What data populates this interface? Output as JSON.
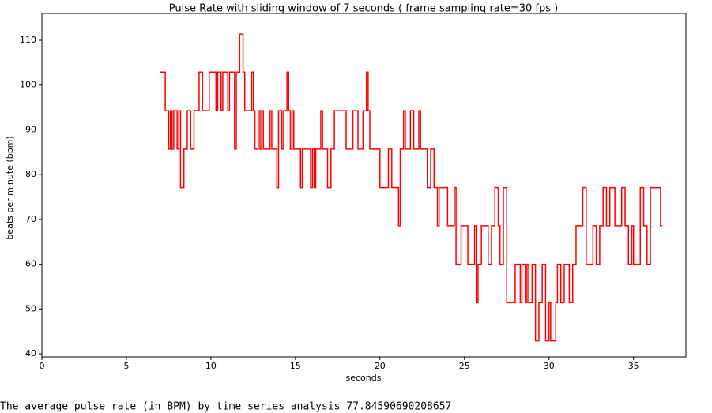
{
  "chart_data": {
    "type": "line",
    "title": "Pulse Rate with sliding window of 7 seconds  ( frame sampling rate=30 fps )",
    "xlabel": "seconds",
    "ylabel": "beats per minute (bpm)",
    "color": "#ff0000",
    "xlim": [
      0,
      38.1
    ],
    "ylim": [
      39.3,
      116
    ],
    "xticks": [
      0,
      5,
      10,
      15,
      20,
      25,
      30,
      35
    ],
    "yticks": [
      40,
      50,
      60,
      70,
      80,
      90,
      100,
      110
    ],
    "grid": false,
    "x": [
      7.0,
      7.3,
      7.3,
      7.5,
      7.5,
      7.6,
      7.6,
      7.7,
      7.7,
      7.8,
      7.8,
      8.0,
      8.0,
      8.1,
      8.1,
      8.2,
      8.2,
      8.4,
      8.4,
      8.6,
      8.6,
      8.8,
      8.8,
      9.0,
      9.0,
      9.3,
      9.3,
      9.5,
      9.5,
      9.9,
      9.9,
      10.3,
      10.3,
      10.4,
      10.4,
      10.6,
      10.6,
      10.7,
      10.7,
      11.0,
      11.0,
      11.1,
      11.1,
      11.4,
      11.4,
      11.5,
      11.5,
      11.7,
      11.7,
      11.9,
      11.9,
      12.0,
      12.0,
      12.4,
      12.4,
      12.5,
      12.5,
      12.6,
      12.6,
      12.8,
      12.8,
      12.9,
      12.9,
      13.0,
      13.0,
      13.1,
      13.1,
      13.5,
      13.5,
      13.6,
      13.6,
      13.9,
      13.9,
      14.0,
      14.0,
      14.2,
      14.2,
      14.3,
      14.3,
      14.5,
      14.5,
      14.6,
      14.6,
      14.7,
      14.7,
      14.8,
      14.8,
      14.9,
      14.9,
      15.3,
      15.3,
      15.4,
      15.4,
      15.9,
      15.9,
      16.0,
      16.0,
      16.1,
      16.1,
      16.2,
      16.2,
      16.5,
      16.5,
      16.6,
      16.6,
      16.9,
      16.9,
      17.1,
      17.1,
      17.3,
      17.3,
      18.0,
      18.0,
      18.4,
      18.4,
      18.7,
      18.7,
      19.0,
      19.0,
      19.2,
      19.2,
      19.3,
      19.3,
      19.4,
      19.4,
      20.0,
      20.0,
      20.5,
      20.5,
      20.7,
      20.7,
      21.1,
      21.1,
      21.2,
      21.2,
      21.4,
      21.4,
      21.5,
      21.5,
      21.8,
      21.8,
      22.0,
      22.0,
      22.3,
      22.3,
      22.4,
      22.4,
      22.8,
      22.8,
      23.0,
      23.0,
      23.2,
      23.2,
      23.4,
      23.4,
      23.5,
      23.5,
      24.0,
      24.0,
      24.4,
      24.4,
      24.5,
      24.5,
      24.8,
      24.8,
      25.2,
      25.2,
      25.6,
      25.6,
      25.7,
      25.7,
      25.8,
      25.8,
      26.0,
      26.0,
      26.4,
      26.4,
      26.6,
      26.6,
      26.8,
      26.8,
      27.0,
      27.0,
      27.1,
      27.1,
      27.3,
      27.3,
      27.5,
      27.5,
      28.0,
      28.0,
      28.3,
      28.3,
      28.4,
      28.4,
      28.6,
      28.6,
      28.7,
      28.7,
      28.8,
      28.8,
      29.0,
      29.0,
      29.2,
      29.2,
      29.4,
      29.4,
      29.6,
      29.6,
      29.8,
      29.8,
      30.0,
      30.0,
      30.1,
      30.1,
      30.4,
      30.4,
      30.5,
      30.5,
      30.7,
      30.7,
      30.9,
      30.9,
      31.2,
      31.2,
      31.4,
      31.4,
      31.6,
      31.6,
      32.0,
      32.0,
      32.2,
      32.2,
      32.6,
      32.6,
      32.8,
      32.8,
      33.0,
      33.0,
      33.2,
      33.2,
      33.4,
      33.4,
      33.6,
      33.6,
      33.9,
      33.9,
      34.3,
      34.3,
      34.5,
      34.5,
      34.7,
      34.7,
      34.9,
      34.9,
      35.0,
      35.0,
      35.4,
      35.4,
      35.6,
      35.6,
      35.8,
      35.8,
      36.0,
      36.0,
      36.6,
      36.6,
      36.7
    ],
    "values": [
      102.9,
      102.9,
      94.3,
      94.3,
      85.7,
      85.7,
      94.3,
      94.3,
      85.7,
      85.7,
      94.3,
      94.3,
      85.7,
      85.7,
      94.3,
      94.3,
      77.1,
      77.1,
      85.7,
      85.7,
      94.3,
      94.3,
      85.7,
      85.7,
      94.3,
      94.3,
      102.9,
      102.9,
      94.3,
      94.3,
      102.9,
      102.9,
      94.3,
      94.3,
      102.9,
      102.9,
      94.3,
      94.3,
      102.9,
      102.9,
      94.3,
      94.3,
      102.9,
      102.9,
      85.7,
      85.7,
      102.9,
      102.9,
      111.4,
      111.4,
      102.9,
      102.9,
      94.3,
      94.3,
      102.9,
      102.9,
      94.3,
      94.3,
      85.7,
      85.7,
      94.3,
      94.3,
      85.7,
      85.7,
      94.3,
      94.3,
      85.7,
      85.7,
      94.3,
      94.3,
      85.7,
      85.7,
      77.1,
      77.1,
      94.3,
      94.3,
      85.7,
      85.7,
      94.3,
      94.3,
      102.9,
      102.9,
      94.3,
      94.3,
      85.7,
      85.7,
      94.3,
      94.3,
      85.7,
      85.7,
      77.1,
      77.1,
      85.7,
      85.7,
      77.1,
      77.1,
      85.7,
      85.7,
      77.1,
      77.1,
      85.7,
      85.7,
      94.3,
      94.3,
      85.7,
      85.7,
      77.1,
      77.1,
      85.7,
      85.7,
      94.3,
      94.3,
      85.7,
      85.7,
      94.3,
      94.3,
      85.7,
      85.7,
      94.3,
      94.3,
      102.9,
      102.9,
      94.3,
      94.3,
      85.7,
      85.7,
      77.1,
      77.1,
      85.7,
      85.7,
      77.1,
      77.1,
      68.6,
      68.6,
      85.7,
      85.7,
      94.3,
      94.3,
      85.7,
      85.7,
      94.3,
      94.3,
      85.7,
      85.7,
      94.3,
      94.3,
      85.7,
      85.7,
      77.1,
      77.1,
      85.7,
      85.7,
      77.1,
      77.1,
      68.6,
      68.6,
      77.1,
      77.1,
      68.6,
      68.6,
      77.1,
      77.1,
      60,
      60,
      68.6,
      68.6,
      60,
      60,
      68.6,
      68.6,
      51.4,
      51.4,
      60,
      60,
      68.6,
      68.6,
      60,
      60,
      68.6,
      68.6,
      77.1,
      77.1,
      68.6,
      68.6,
      60,
      60,
      77.1,
      77.1,
      51.4,
      51.4,
      60,
      60,
      51.4,
      51.4,
      60,
      60,
      51.4,
      51.4,
      60,
      60,
      51.4,
      51.4,
      60,
      60,
      42.9,
      42.9,
      51.4,
      51.4,
      60,
      60,
      42.9,
      42.9,
      51.4,
      51.4,
      42.9,
      42.9,
      51.4,
      51.4,
      60,
      60,
      51.4,
      51.4,
      60,
      60,
      51.4,
      51.4,
      60,
      60,
      68.6,
      68.6,
      77.1,
      77.1,
      60,
      60,
      68.6,
      68.6,
      60,
      60,
      68.6,
      68.6,
      77.1,
      77.1,
      68.6,
      68.6,
      77.1,
      77.1,
      68.6,
      68.6,
      77.1,
      77.1,
      68.6,
      68.6,
      60,
      60,
      68.6,
      68.6,
      60,
      60,
      77.1,
      77.1,
      68.6,
      68.6,
      60,
      60,
      77.1,
      77.1,
      68.6,
      68.6
    ]
  },
  "output_text": "The average pulse rate (in BPM) by time series analysis  77.84590690208657"
}
